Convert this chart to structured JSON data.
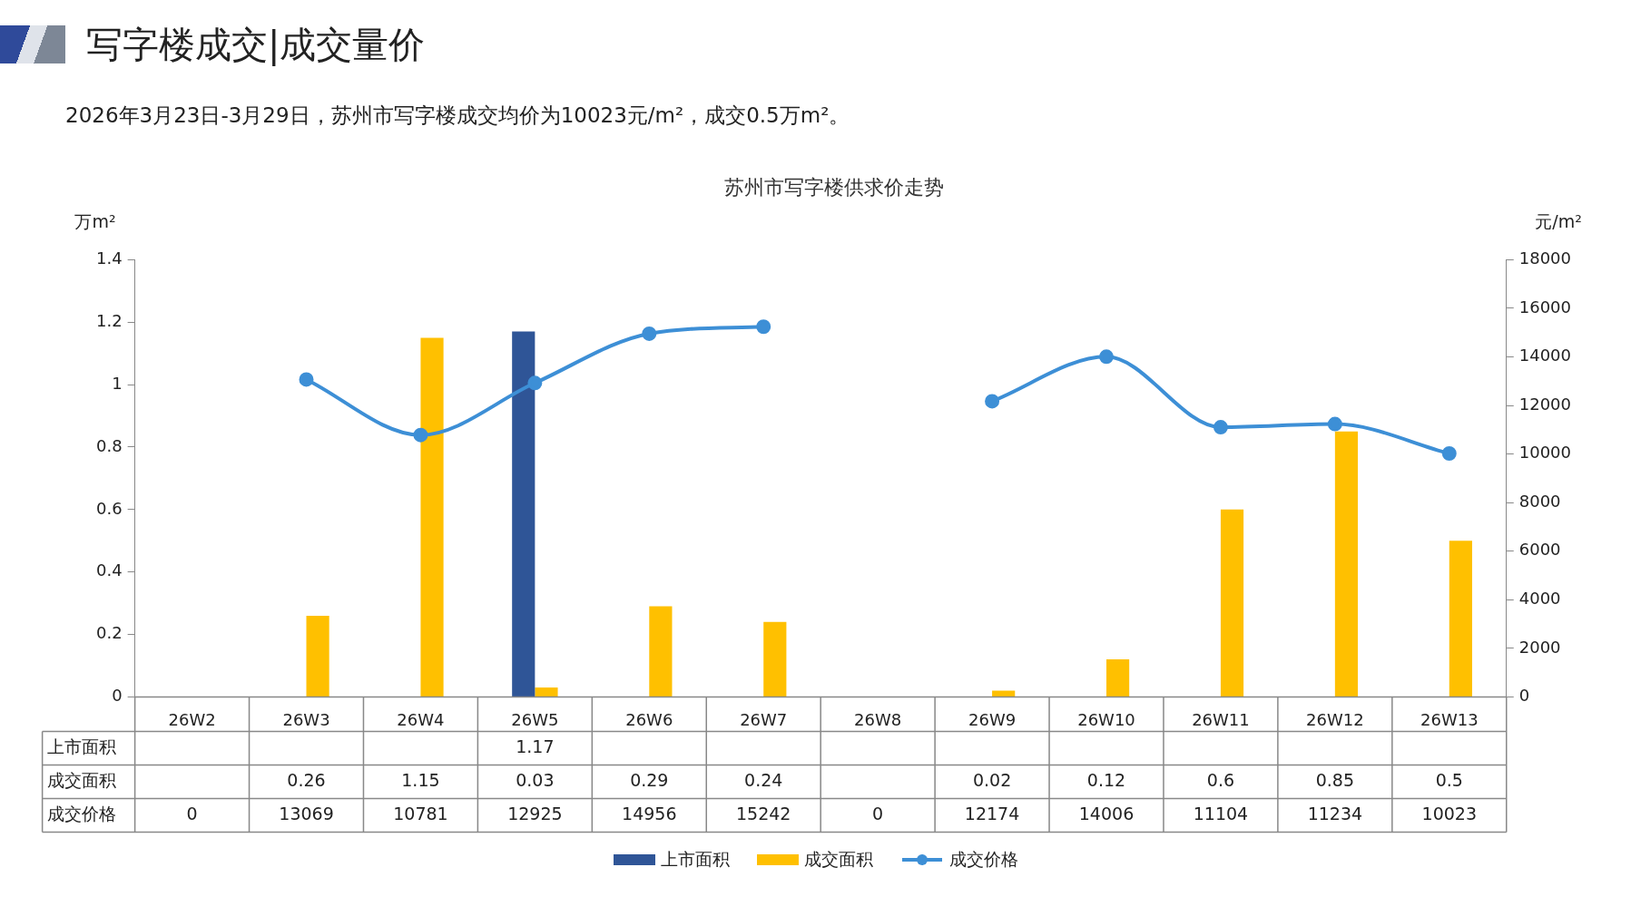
{
  "chart_data": {
    "type": "bar",
    "title": "苏州市写字楼供求价走势",
    "subtitle": "2026年3月23日-3月29日，苏州市写字楼成交均价为10023元/m²，成交0.5万m²。",
    "annotations": [
      "写字楼成交|成交量价"
    ],
    "ylabel": "万m²",
    "y2label": "元/m²",
    "categories": [
      "26W2",
      "26W3",
      "26W4",
      "26W5",
      "26W6",
      "26W7",
      "26W8",
      "26W9",
      "26W10",
      "26W11",
      "26W12",
      "26W13"
    ],
    "series": [
      {
        "name": "上市面积",
        "color": "#2f5597",
        "values": [
          null,
          null,
          null,
          1.17,
          null,
          null,
          null,
          null,
          null,
          null,
          null,
          null
        ],
        "value_labels": [
          null,
          null,
          null,
          "1.17",
          null,
          null,
          null,
          null,
          null,
          null,
          null,
          null
        ]
      },
      {
        "name": "成交面积",
        "color": "#ffc000",
        "values": [
          null,
          0.26,
          1.15,
          0.03,
          0.29,
          0.24,
          null,
          0.02,
          0.12,
          0.6,
          0.85,
          0.5
        ],
        "value_labels": [
          null,
          "0.26",
          "1.15",
          "0.03",
          "0.29",
          "0.24",
          null,
          "0.02",
          "0.12",
          "0.6",
          "0.85",
          "0.5"
        ]
      },
      {
        "name": "成交价格",
        "type": "line",
        "axis": "y2",
        "color": "#3d8fd6",
        "values": [
          null,
          13069,
          10781,
          12925,
          14956,
          15242,
          null,
          12174,
          14006,
          11104,
          11234,
          10023
        ],
        "value_labels": [
          "0",
          "13069",
          "10781",
          "12925",
          "14956",
          "15242",
          "0",
          "12174",
          "14006",
          "11104",
          "11234",
          "10023"
        ]
      }
    ],
    "ylim": [
      0,
      1.4
    ],
    "yticks": [
      0,
      0.2,
      0.4,
      0.6,
      0.8,
      1,
      1.2,
      1.4
    ],
    "y2lim": [
      0,
      18000
    ],
    "y2ticks": [
      0,
      2000,
      4000,
      6000,
      8000,
      10000,
      12000,
      14000,
      16000,
      18000
    ],
    "grid": false,
    "legend": "bottom",
    "marker": "circle",
    "line_style": "solid"
  }
}
